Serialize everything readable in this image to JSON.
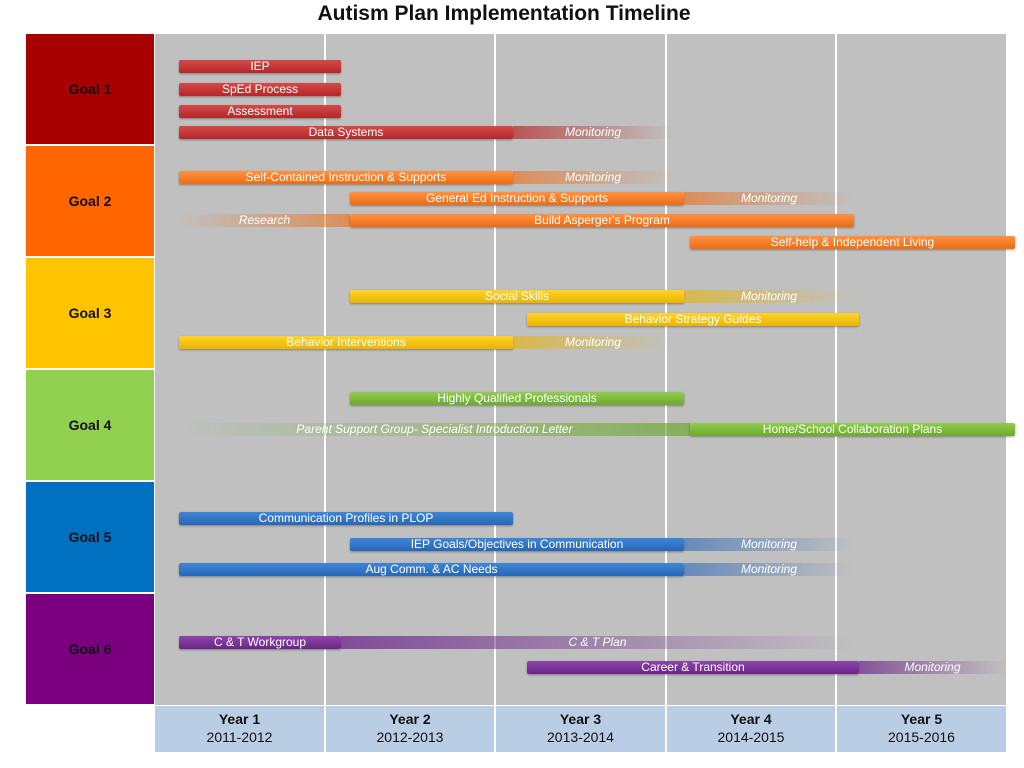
{
  "title": "Autism Plan Implementation Timeline",
  "goals": [
    {
      "label": "Goal 1",
      "color": "#a80000"
    },
    {
      "label": "Goal 2",
      "color": "#ff6600"
    },
    {
      "label": "Goal 3",
      "color": "#ffc400"
    },
    {
      "label": "Goal 4",
      "color": "#92d050"
    },
    {
      "label": "Goal 5",
      "color": "#0070c0"
    },
    {
      "label": "Goal 6",
      "color": "#7a0080"
    }
  ],
  "years": [
    {
      "label": "Year 1",
      "range": "2011-2012"
    },
    {
      "label": "Year 2",
      "range": "2012-2013"
    },
    {
      "label": "Year 3",
      "range": "2013-2014"
    },
    {
      "label": "Year 4",
      "range": "2014-2015"
    },
    {
      "label": "Year 5",
      "range": "2015-2016"
    }
  ],
  "tasks": {
    "iep": "IEP",
    "sped": "SpEd Process",
    "assessment": "Assessment",
    "data_systems": "Data Systems",
    "monitoring": "Monitoring",
    "self_contained": "Self-Contained Instruction & Supports",
    "general_ed": "General Ed Instruction & Supports",
    "research": "Research",
    "aspergers": "Build Asperger's Program",
    "self_help": "Self-help & Independent Living",
    "social_skills": "Social Skills",
    "behavior_guides": "Behavior Strategy Guides",
    "behavior_interventions": "Behavior Interventions",
    "hqp": "Highly Qualified Professionals",
    "parent_support": "Parent Support Group- Specialist Introduction Letter",
    "home_school": "Home/School Collaboration Plans",
    "comm_profiles": "Communication Profiles in PLOP",
    "iep_goals": "IEP Goals/Objectives in Communication",
    "aug_comm": "Aug Comm. & AC Needs",
    "ct_workgroup": "C & T Workgroup",
    "ct_plan": "C & T Plan",
    "career": "Career & Transition"
  }
}
